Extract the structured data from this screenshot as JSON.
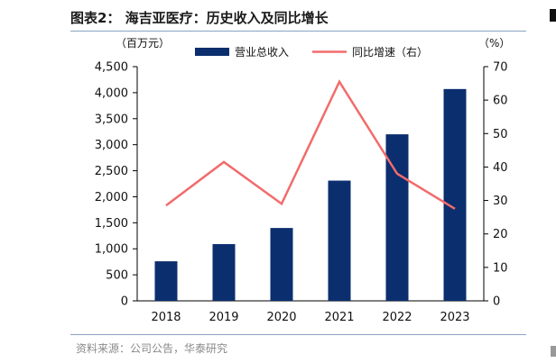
{
  "title": "图表2： 海吉亚医疗：历史收入及同比增长",
  "source": "资料来源：公司公告，华泰研究",
  "chart_data": {
    "type": "bar",
    "categories": [
      "2018",
      "2019",
      "2020",
      "2021",
      "2022",
      "2023"
    ],
    "series": [
      {
        "name": "营业总收入",
        "type": "bar",
        "axis": "left",
        "color": "#0b2e6e",
        "values": [
          760,
          1090,
          1400,
          2310,
          3200,
          4070
        ]
      },
      {
        "name": "同比增速（右）",
        "type": "line",
        "axis": "right",
        "color": "#f26b6b",
        "values": [
          28.5,
          41.5,
          29.0,
          65.5,
          38.0,
          27.5
        ]
      }
    ],
    "ylabel_left": "（百万元）",
    "ylabel_right": "（%）",
    "ylim_left": [
      0,
      4500
    ],
    "ylim_right": [
      0,
      70
    ],
    "yticks_left": [
      "0",
      "500",
      "1,000",
      "1,500",
      "2,000",
      "2,500",
      "3,000",
      "3,500",
      "4,000",
      "4,500"
    ],
    "yticks_right": [
      "0",
      "10",
      "20",
      "30",
      "40",
      "50",
      "60",
      "70"
    ],
    "legend_position": "top-center",
    "grid": false
  }
}
